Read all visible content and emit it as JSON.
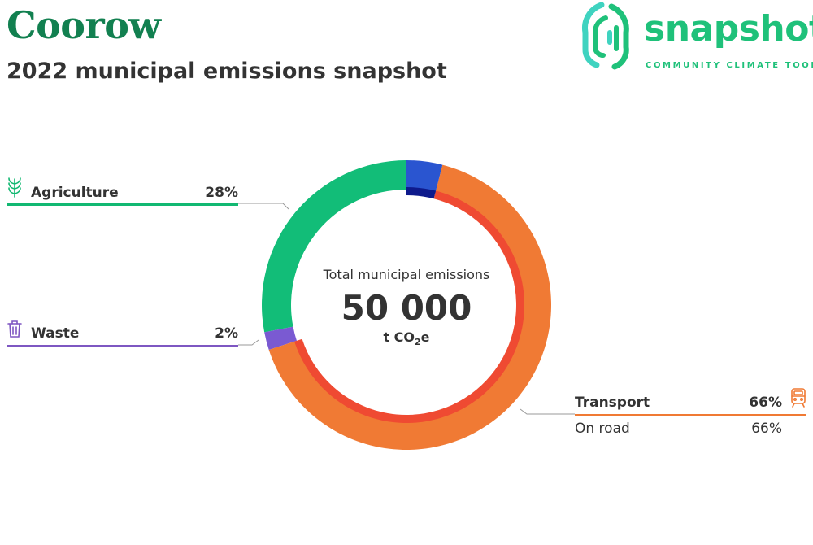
{
  "header": {
    "title": "Coorow",
    "subtitle": "2022 municipal emissions snapshot"
  },
  "logo": {
    "word": "snapshot",
    "tagline": "COMMUNITY CLIMATE TOOL",
    "icon": "fingerprint-icon",
    "colors": {
      "green": "#1fc17a",
      "teal": "#3fd3c0"
    }
  },
  "center": {
    "label": "Total municipal emissions",
    "value": "50 000",
    "unit_prefix": "t CO",
    "unit_sub": "2",
    "unit_suffix": "e"
  },
  "legend": {
    "agriculture": {
      "label": "Agriculture",
      "pct": "28%",
      "icon": "wheat-icon",
      "color": "#12b872"
    },
    "waste": {
      "label": "Waste",
      "pct": "2%",
      "icon": "trash-bin-icon",
      "color": "#7e57c2"
    },
    "transport": {
      "label": "Transport",
      "pct": "66%",
      "icon": "train-icon",
      "color": "#f07a34",
      "sub": {
        "label": "On road",
        "pct": "66%"
      }
    }
  },
  "chart_data": {
    "type": "donut",
    "total": 50000,
    "unit": "t CO2e",
    "outer_ring": [
      {
        "name": "Agriculture",
        "value": 28,
        "color": "#12bd78"
      },
      {
        "name": "Waste",
        "value": 2,
        "color": "#7a5ad2"
      },
      {
        "name": "Transport",
        "value": 66,
        "color": "#f07a34"
      },
      {
        "value": 4,
        "color": "#2a55d0"
      }
    ],
    "inner_ring": [
      {
        "name": "On road",
        "value": 66,
        "color": "#ef4a32"
      },
      {
        "value": 4,
        "color": "#0e1a8c"
      }
    ]
  }
}
